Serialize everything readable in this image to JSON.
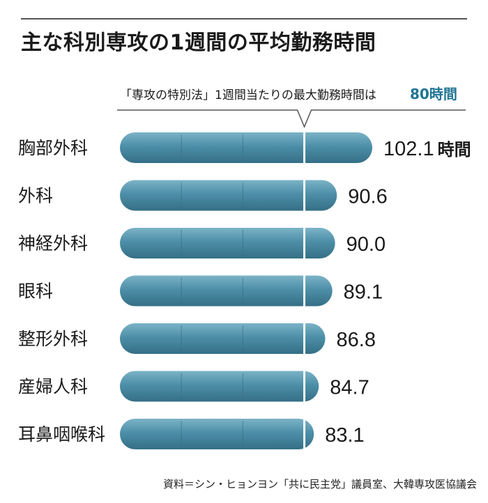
{
  "title": "主な科別専攻の1週間の平均勤務時間",
  "source": "資料＝シン・ヒョンヨン「共に民主党」議員室、大韓専攻医協議会",
  "colors": {
    "bar": "#4d8fa8",
    "bar_light": "#7bb3c7",
    "bar_dark": "#356f86",
    "limit_line": "#ffffff",
    "highlight": "#1f7492",
    "text": "#1a1a1a"
  },
  "chart_data": {
    "type": "bar",
    "orientation": "horizontal",
    "title": "主な科別専攻の1週間の平均勤務時間",
    "categories": [
      "胸部外科",
      "外科",
      "神経外科",
      "眼科",
      "整形外科",
      "産婦人科",
      "耳鼻咽喉科"
    ],
    "values": [
      102.1,
      90.6,
      90.0,
      89.1,
      86.8,
      84.7,
      83.1
    ],
    "value_labels": [
      "102.1",
      "90.6",
      "90.0",
      "89.1",
      "86.8",
      "84.7",
      "83.1"
    ],
    "first_value_suffix": "時間",
    "xlim": [
      20,
      102.1
    ],
    "grid_values": [
      40,
      60,
      80
    ],
    "annotation": {
      "text": "「専攻の特別法」1週間当たりの最大勤務時間は",
      "highlight": "80時間",
      "value": 80
    },
    "legend": "none"
  }
}
